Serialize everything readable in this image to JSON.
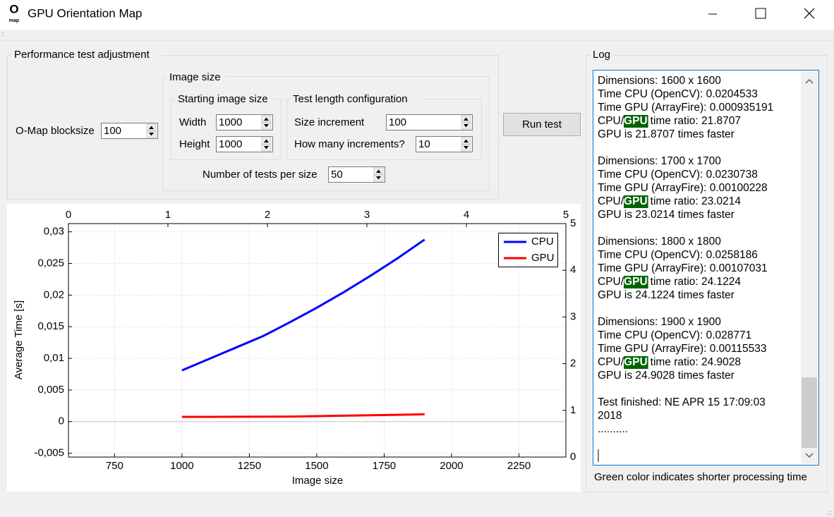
{
  "window": {
    "title": "GPU Orientation Map",
    "icon": [
      "O",
      "map"
    ]
  },
  "settings": {
    "title": "Performance test adjustment",
    "blocksize": {
      "label": "O-Map blocksize",
      "value": 100
    },
    "image_size": {
      "title": "Image size",
      "starting": {
        "title": "Starting image size",
        "width": {
          "label": "Width",
          "value": 1000
        },
        "height": {
          "label": "Height",
          "value": 1000
        }
      },
      "test_length": {
        "title": "Test length configuration",
        "size_increment": {
          "label": "Size increment",
          "value": 100
        },
        "increments": {
          "label": "How many increments?",
          "value": 10
        }
      },
      "tests_per_size": {
        "label": "Number of tests per size",
        "value": 50
      }
    },
    "run_button": "Run test"
  },
  "chart_data": {
    "type": "line",
    "xlabel": "Image size",
    "ylabel": "Average Time [s]",
    "x": [
      1000,
      1100,
      1200,
      1300,
      1400,
      1500,
      1600,
      1700,
      1800,
      1900
    ],
    "series": [
      {
        "name": "CPU",
        "color": "#0000ff",
        "values": [
          0.0081,
          0.0099,
          0.0117,
          0.0135,
          0.0157,
          0.018,
          0.0204533,
          0.0230738,
          0.0258186,
          0.028771
        ]
      },
      {
        "name": "GPU",
        "color": "#ff0000",
        "values": [
          0.00075,
          0.00076,
          0.00077,
          0.00078,
          0.0008,
          0.00086,
          0.000935191,
          0.00100228,
          0.00107031,
          0.00115533
        ]
      }
    ],
    "xlim": [
      579,
      2424
    ],
    "xticks": [
      750,
      1000,
      1250,
      1500,
      1750,
      2000,
      2250
    ],
    "ylim": [
      -0.0056,
      0.0313
    ],
    "yticks": [
      {
        "value": -0.005,
        "label": "-0,005"
      },
      0,
      {
        "value": 0.005,
        "label": "0,005"
      },
      {
        "value": 0.01,
        "label": "0,01"
      },
      {
        "value": 0.015,
        "label": "0,015"
      },
      {
        "value": 0.02,
        "label": "0,02"
      },
      {
        "value": 0.025,
        "label": "0,025"
      },
      {
        "value": 0.03,
        "label": "0,03"
      }
    ],
    "x2lim": [
      0,
      5
    ],
    "x2ticks": [
      0,
      1,
      2,
      3,
      4,
      5
    ],
    "y2lim": [
      0,
      5
    ],
    "y2ticks": [
      0,
      1,
      2,
      3,
      4,
      5
    ],
    "grid": true,
    "legend": "top-right"
  },
  "log": {
    "title": "Log",
    "entries": [
      {
        "dimensions": "Dimensions: 1600 x 1600",
        "cpu": "Time CPU (OpenCV): 0.0204533",
        "gpu": "Time GPU (ArrayFire): 0.000935191",
        "ratio": {
          "prefix": "CPU/",
          "highlight": "GPU",
          "rest": "time ratio: 21.8707"
        },
        "faster": "GPU is 21.8707 times faster"
      },
      {
        "dimensions": "Dimensions: 1700 x 1700",
        "cpu": "Time CPU (OpenCV): 0.0230738",
        "gpu": "Time GPU (ArrayFire): 0.00100228",
        "ratio": {
          "prefix": "CPU/",
          "highlight": "GPU",
          "rest": "time ratio: 23.0214"
        },
        "faster": "GPU is 23.0214 times faster"
      },
      {
        "dimensions": "Dimensions: 1800 x 1800",
        "cpu": "Time CPU (OpenCV): 0.0258186",
        "gpu": "Time GPU (ArrayFire): 0.00107031",
        "ratio": {
          "prefix": "CPU/",
          "highlight": "GPU",
          "rest": "time ratio: 24.1224"
        },
        "faster": "GPU is 24.1224 times faster"
      },
      {
        "dimensions": "Dimensions: 1900 x 1900",
        "cpu": "Time CPU (OpenCV): 0.028771",
        "gpu": "Time GPU (ArrayFire): 0.00115533",
        "ratio": {
          "prefix": "CPU/",
          "highlight": "GPU",
          "rest": "time ratio: 24.9028"
        },
        "faster": "GPU is 24.9028 times faster"
      }
    ],
    "finished": [
      "Test finished: NE APR 15 17:09:03",
      "2018"
    ],
    "ellipsis": "..........",
    "footer": "Green color indicates shorter processing time"
  }
}
